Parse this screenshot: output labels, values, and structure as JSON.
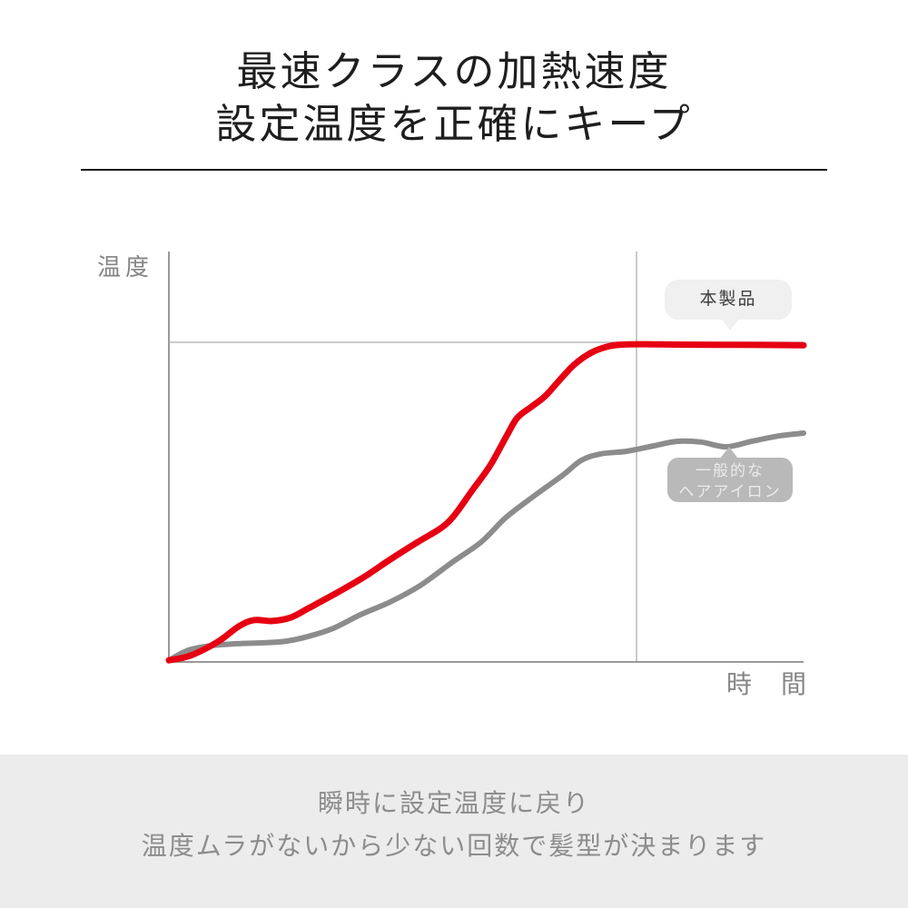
{
  "header": {
    "title_line1": "最速クラスの加熱速度",
    "title_line2": "設定温度を正確にキープ"
  },
  "chart": {
    "y_axis_label": "温度",
    "x_axis_label": "時　間",
    "badges": {
      "product": {
        "label": "本製品"
      },
      "generic": {
        "label_line1": "一般的な",
        "label_line2": "ヘアアイロン"
      }
    }
  },
  "chart_data": {
    "type": "line",
    "title": "",
    "xlabel": "時間",
    "ylabel": "温度",
    "x_axis": {
      "range": [
        0,
        1
      ],
      "ticks": "none",
      "unit": "time (qualitative)"
    },
    "y_axis": {
      "range": [
        0,
        1.28
      ],
      "ticks": "none",
      "unit": "temperature relative to set point (set temperature = 1.0)"
    },
    "annotations": {
      "set_temperature_gridline_y": 1.0,
      "time_marker_gridline_x": 0.736
    },
    "legend_position": "callout-bubbles-on-lines",
    "grid": "single horizontal set-temp line and single vertical time marker",
    "series": [
      {
        "name": "本製品",
        "color": "#e60012",
        "points": [
          [
            0,
            0.005
          ],
          [
            0.034,
            0.02
          ],
          [
            0.077,
            0.063
          ],
          [
            0.11,
            0.111
          ],
          [
            0.134,
            0.131
          ],
          [
            0.163,
            0.128
          ],
          [
            0.192,
            0.139
          ],
          [
            0.22,
            0.168
          ],
          [
            0.259,
            0.21
          ],
          [
            0.306,
            0.264
          ],
          [
            0.349,
            0.321
          ],
          [
            0.392,
            0.375
          ],
          [
            0.428,
            0.418
          ],
          [
            0.449,
            0.457
          ],
          [
            0.478,
            0.537
          ],
          [
            0.506,
            0.614
          ],
          [
            0.532,
            0.707
          ],
          [
            0.549,
            0.764
          ],
          [
            0.571,
            0.798
          ],
          [
            0.592,
            0.83
          ],
          [
            0.614,
            0.878
          ],
          [
            0.638,
            0.929
          ],
          [
            0.664,
            0.966
          ],
          [
            0.69,
            0.986
          ],
          [
            0.714,
            0.993
          ],
          [
            0.75,
            0.994
          ],
          [
            0.8,
            0.993
          ],
          [
            0.9,
            0.992
          ],
          [
            1,
            0.991
          ]
        ]
      },
      {
        "name": "一般的なヘアアイロン",
        "color": "#8c8c8c",
        "points": [
          [
            0,
            0.005
          ],
          [
            0.031,
            0.037
          ],
          [
            0.067,
            0.051
          ],
          [
            0.106,
            0.057
          ],
          [
            0.149,
            0.06
          ],
          [
            0.185,
            0.065
          ],
          [
            0.22,
            0.08
          ],
          [
            0.259,
            0.105
          ],
          [
            0.302,
            0.148
          ],
          [
            0.349,
            0.188
          ],
          [
            0.396,
            0.239
          ],
          [
            0.445,
            0.31
          ],
          [
            0.492,
            0.375
          ],
          [
            0.531,
            0.452
          ],
          [
            0.578,
            0.523
          ],
          [
            0.621,
            0.585
          ],
          [
            0.65,
            0.631
          ],
          [
            0.681,
            0.651
          ],
          [
            0.721,
            0.659
          ],
          [
            0.764,
            0.676
          ],
          [
            0.8,
            0.69
          ],
          [
            0.838,
            0.688
          ],
          [
            0.878,
            0.673
          ],
          [
            0.918,
            0.69
          ],
          [
            0.961,
            0.707
          ],
          [
            1,
            0.716
          ]
        ]
      }
    ]
  },
  "footer": {
    "line1": "瞬時に設定温度に戻り",
    "line2": "温度ムラがないから少ない回数で髪型が決まります"
  },
  "colors": {
    "page_bg": "#ffffff",
    "title_text": "#1e1e1e",
    "accent_red": "#e60012",
    "line_gray": "#8c8c8c",
    "axis_gray": "#999999",
    "grid_gray": "#b8b8b8",
    "label_gray": "#858585",
    "badge_light_bg": "#f0f0f0",
    "badge_gray_bg": "#b9b9b9",
    "footer_bg": "#ececec",
    "footer_text": "#8c8c8c"
  }
}
